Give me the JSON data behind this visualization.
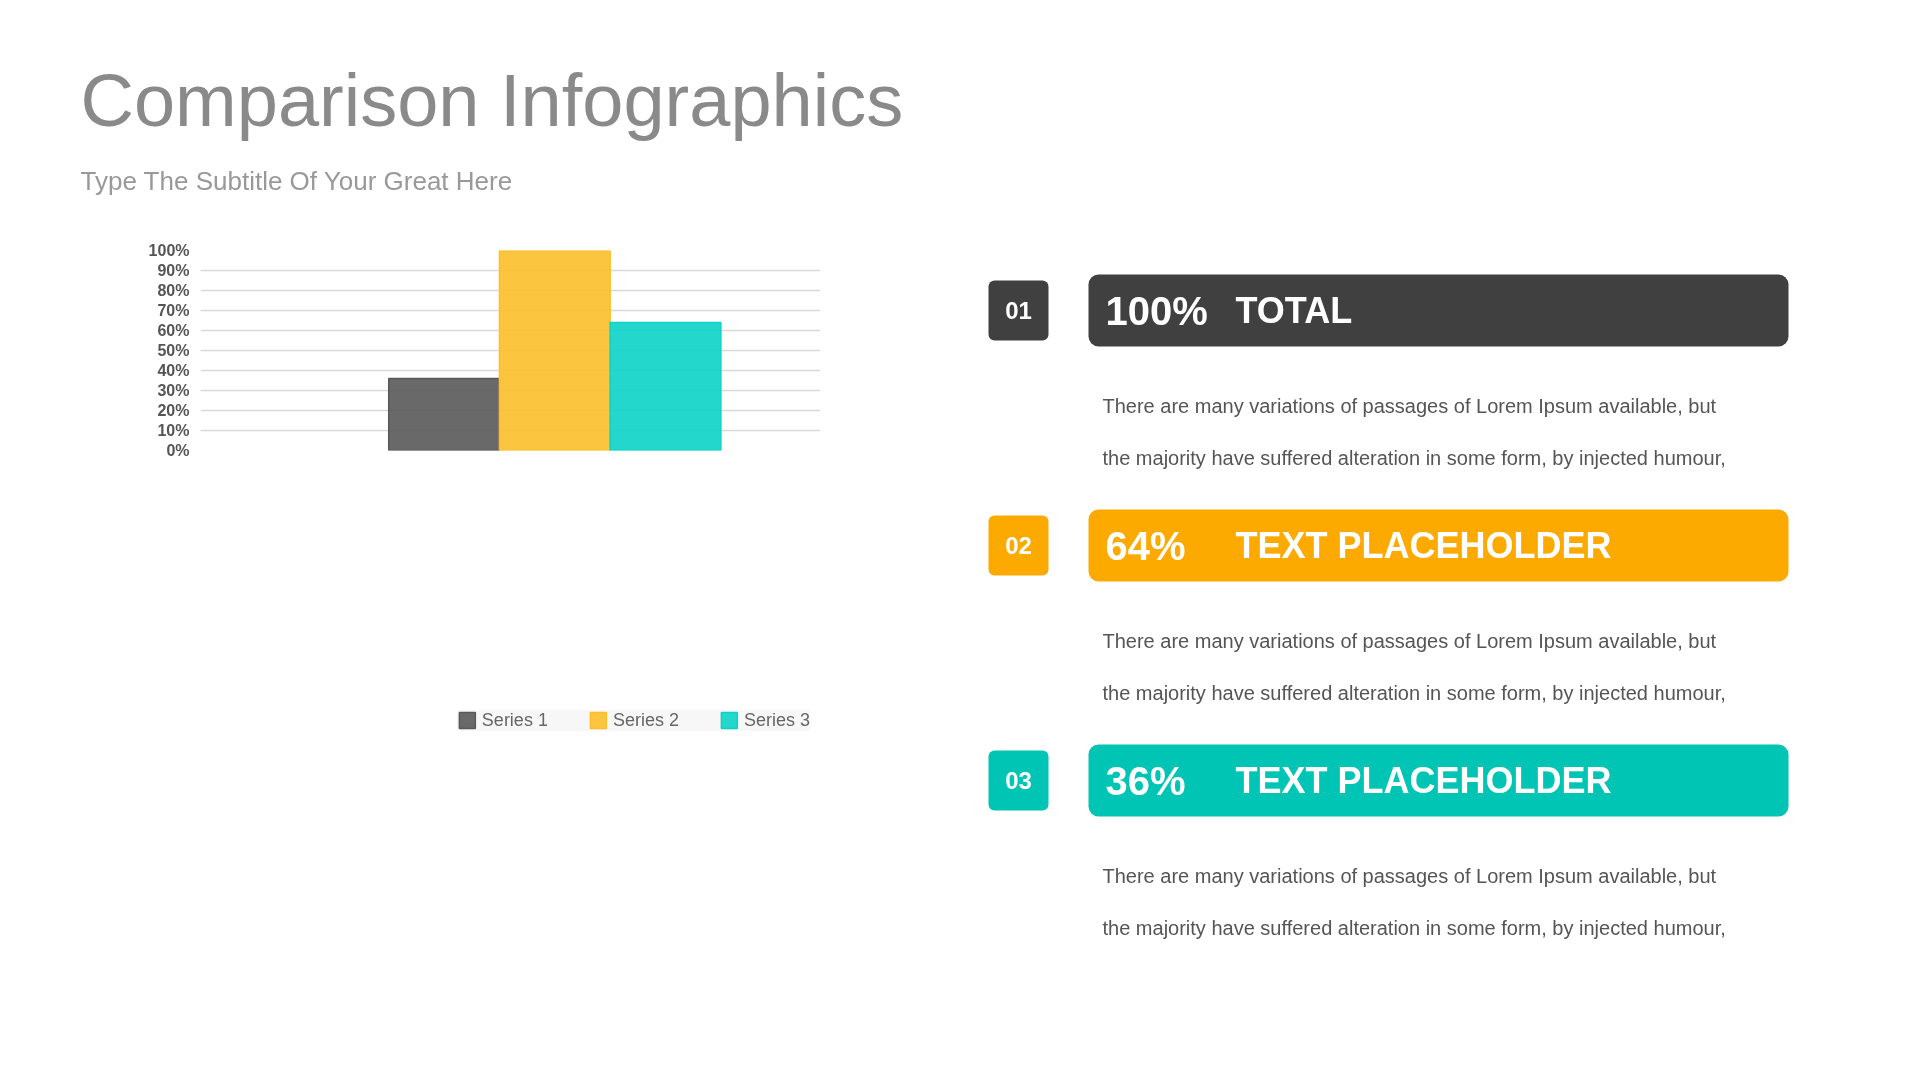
{
  "chart_data": [
    {
      "type": "bar",
      "title": "Comparison Infographics",
      "subtitle": "Type The Subtitle Of Your Great Here",
      "categories": [
        null
      ],
      "series": [
        {
          "name": "Series 1",
          "color": "#595959",
          "values": [
            36
          ]
        },
        {
          "name": "Series 2",
          "color": "#fcbf2a",
          "values": [
            100
          ]
        },
        {
          "name": "Series 3",
          "color": "#0bd3c8",
          "values": [
            64
          ]
        }
      ],
      "ylim": [
        0,
        100
      ],
      "yticks": [
        {
          "value": 0,
          "label": "0%"
        },
        {
          "value": 10,
          "label": "10%"
        },
        {
          "value": 20,
          "label": "20%"
        },
        {
          "value": 30,
          "label": "30%"
        },
        {
          "value": 40,
          "label": "40%"
        },
        {
          "value": 50,
          "label": "50%"
        },
        {
          "value": 60,
          "label": "60%"
        },
        {
          "value": 70,
          "label": "70%"
        },
        {
          "value": 80,
          "label": "80%"
        },
        {
          "value": 90,
          "label": "90%"
        },
        {
          "value": 100,
          "label": "100%"
        }
      ],
      "grid": "y",
      "legend": "bottom",
      "tick_labels": "y"
    },
    {
      "type": "other",
      "colors": [
        "#404040",
        "#fcaa00",
        "#00c4b4"
      ],
      "annotations": [
        "01",
        "100%",
        "TOTAL",
        "There are many variations of passages of Lorem Ipsum available, but",
        "the majority have suffered alteration in some form, by injected humour,",
        "02",
        "64%",
        "TEXT PLACEHOLDER",
        "There are many variations of passages of Lorem Ipsum available, but",
        "the majority have suffered alteration in some form, by injected humour,",
        "03",
        "36%",
        "TEXT PLACEHOLDER",
        "There are many variations of passages of Lorem Ipsum available, but",
        "the majority have suffered alteration in some form, by injected humour,"
      ]
    }
  ]
}
